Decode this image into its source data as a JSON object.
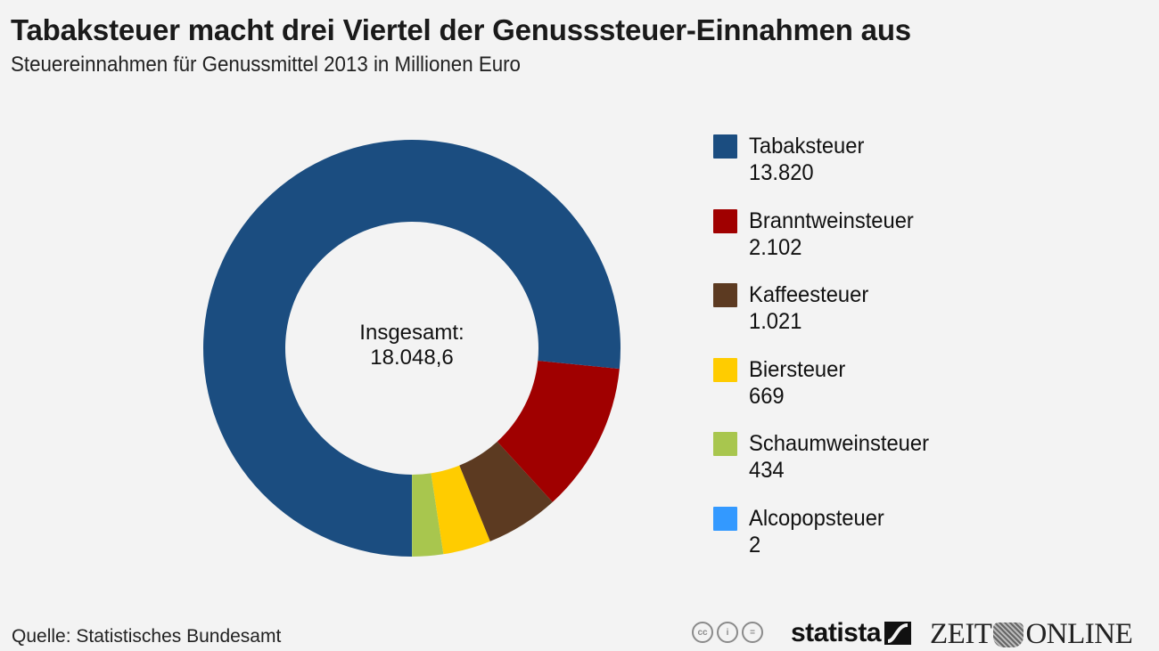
{
  "header": {
    "title": "Tabaksteuer macht drei Viertel der Genusssteuer-Einnahmen aus",
    "subtitle": "Steuereinnahmen für Genussmittel 2013 in Millionen Euro"
  },
  "center": {
    "label": "Insgesamt:",
    "value": "18.048,6"
  },
  "legend": [
    {
      "label": "Tabaksteuer",
      "value": "13.820",
      "color": "#1b4d80"
    },
    {
      "label": "Branntweinsteuer",
      "value": "2.102",
      "color": "#a00000"
    },
    {
      "label": "Kaffeesteuer",
      "value": "1.021",
      "color": "#5c3a21"
    },
    {
      "label": "Biersteuer",
      "value": "669",
      "color": "#ffcc00"
    },
    {
      "label": "Schaumweinsteuer",
      "value": "434",
      "color": "#a8c64e"
    },
    {
      "label": "Alcopopsteuer",
      "value": "2",
      "color": "#3399ff"
    }
  ],
  "footer": {
    "source": "Quelle: Statistisches Bundesamt",
    "cc_icons": [
      "cc-icon",
      "by-icon",
      "nd-icon"
    ],
    "cc_labels": [
      "cc",
      "i",
      "="
    ],
    "brand1": "statista",
    "brand2_left": "ZEIT",
    "brand2_right": "ONLINE"
  },
  "chart_data": {
    "type": "pie",
    "variant": "donut",
    "title": "Tabaksteuer macht drei Viertel der Genusssteuer-Einnahmen aus",
    "subtitle": "Steuereinnahmen für Genussmittel 2013 in Millionen Euro",
    "categories": [
      "Tabaksteuer",
      "Branntweinsteuer",
      "Kaffeesteuer",
      "Biersteuer",
      "Schaumweinsteuer",
      "Alcopopsteuer"
    ],
    "values": [
      13820,
      2102,
      1021,
      669,
      434,
      2
    ],
    "colors": [
      "#1b4d80",
      "#a00000",
      "#5c3a21",
      "#ffcc00",
      "#a8c64e",
      "#3399ff"
    ],
    "total_label": "Insgesamt: 18.048,6",
    "start": "bottom",
    "direction": "counter-clockwise from smallest",
    "legend_position": "right",
    "source": "Quelle: Statistisches Bundesamt"
  }
}
